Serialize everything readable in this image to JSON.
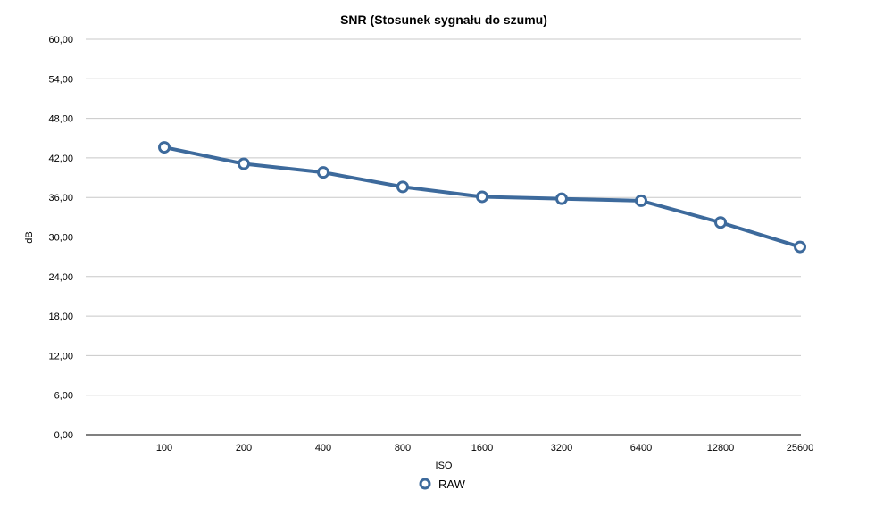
{
  "chart_data": {
    "type": "line",
    "title": "SNR (Stosunek sygnału do szumu)",
    "xlabel": "ISO",
    "ylabel": "dB",
    "categories": [
      "100",
      "200",
      "400",
      "800",
      "1600",
      "3200",
      "6400",
      "12800",
      "25600"
    ],
    "series": [
      {
        "name": "RAW",
        "color": "#3d6a9c",
        "values": [
          43.6,
          41.1,
          39.8,
          37.6,
          36.1,
          35.8,
          35.5,
          32.2,
          28.5
        ]
      }
    ],
    "ylim": [
      0,
      60
    ],
    "yticks": [
      "0,00",
      "6,00",
      "12,00",
      "18,00",
      "24,00",
      "30,00",
      "36,00",
      "42,00",
      "48,00",
      "54,00",
      "60,00"
    ],
    "grid": true,
    "legend_position": "bottom-center"
  }
}
